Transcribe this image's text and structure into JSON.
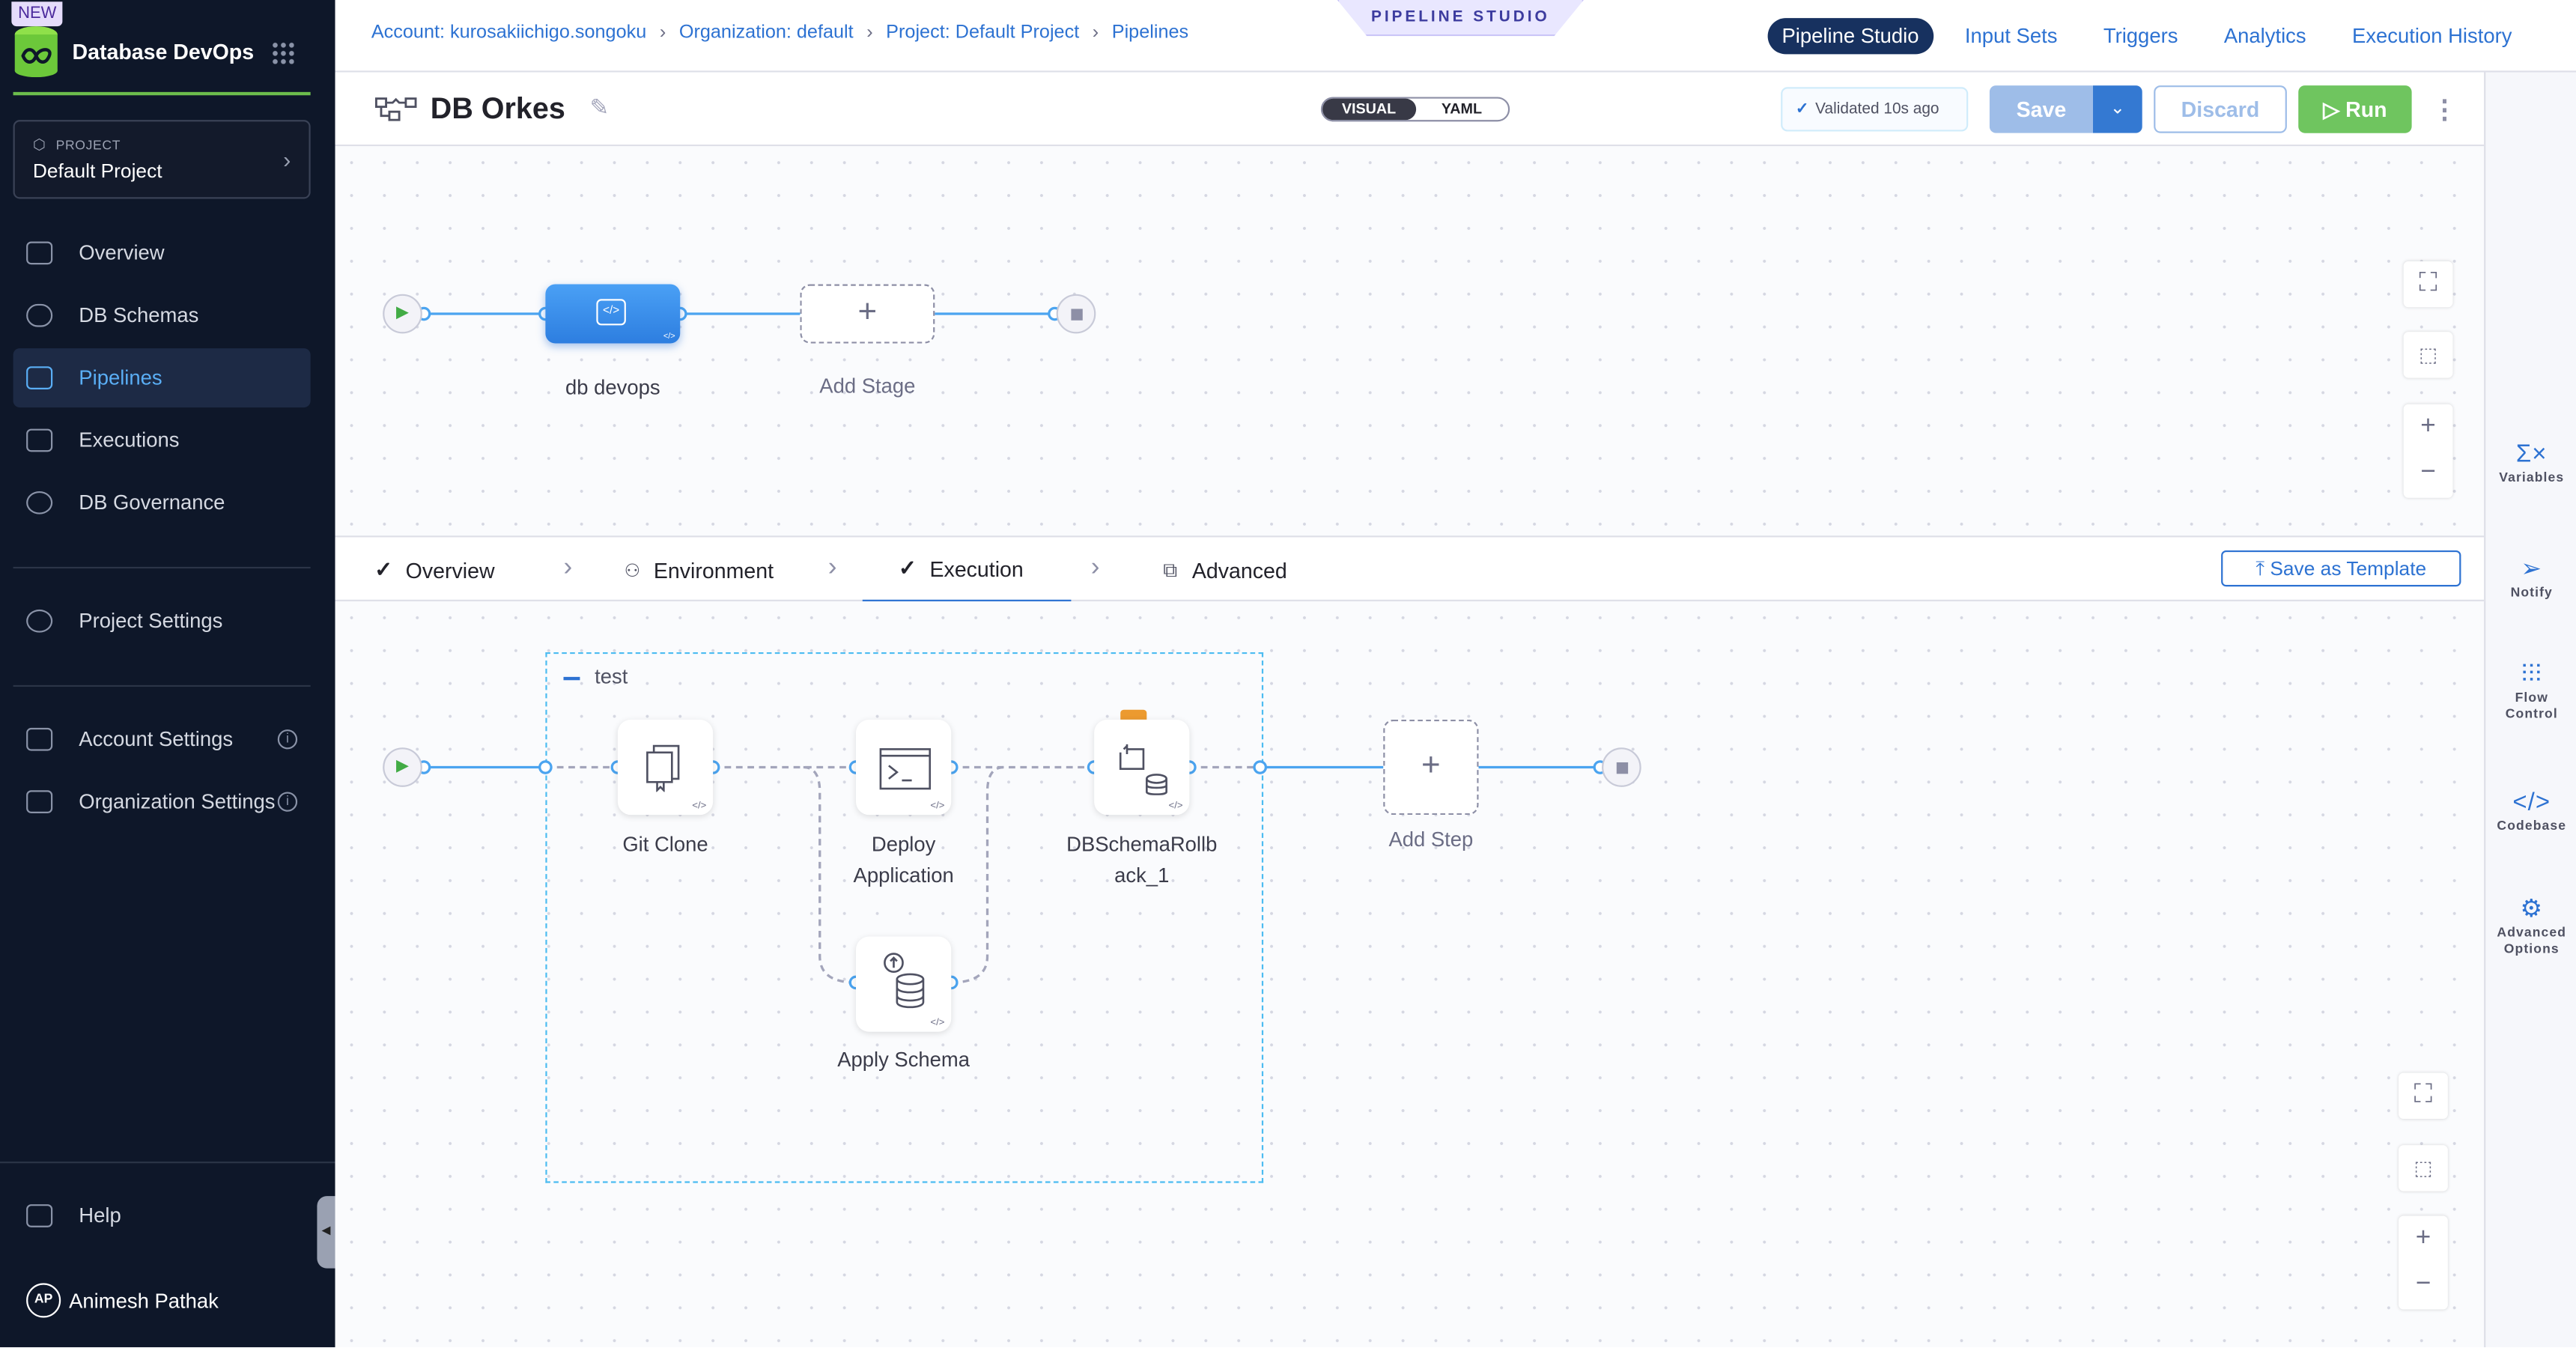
{
  "sidebar": {
    "badge": "NEW",
    "module": "Database DevOps",
    "project_label": "PROJECT",
    "project_name": "Default Project",
    "items": [
      {
        "label": "Overview",
        "icon": "home-icon"
      },
      {
        "label": "DB Schemas",
        "icon": "database-icon"
      },
      {
        "label": "Pipelines",
        "icon": "pipeline-icon",
        "active": true
      },
      {
        "label": "Executions",
        "icon": "executions-icon"
      },
      {
        "label": "DB Governance",
        "icon": "governance-icon"
      }
    ],
    "project_settings": "Project Settings",
    "account_settings": "Account Settings",
    "org_settings": "Organization Settings",
    "help": "Help",
    "user_initials": "AP",
    "user_name": "Animesh Pathak"
  },
  "breadcrumbs": [
    "Account: kurosakiichigo.songoku",
    "Organization: default",
    "Project: Default Project",
    "Pipelines"
  ],
  "studio_tag": "PIPELINE STUDIO",
  "top_tabs": [
    "Pipeline Studio",
    "Input Sets",
    "Triggers",
    "Analytics",
    "Execution History"
  ],
  "pipeline": {
    "name": "DB Orkes",
    "view_visual": "VISUAL",
    "view_yaml": "YAML",
    "validated": "Validated",
    "validated_time": "10s ago",
    "save": "Save",
    "discard": "Discard",
    "run": "Run"
  },
  "stages": {
    "stage_name": "db devops",
    "add_stage": "Add Stage"
  },
  "stage_tabs": {
    "overview": "Overview",
    "environment": "Environment",
    "execution": "Execution",
    "advanced": "Advanced",
    "save_template": "Save as Template"
  },
  "execution": {
    "group": "test",
    "steps": [
      "Git Clone",
      "Deploy Application",
      "DBSchemaRollback_1",
      "Apply Schema"
    ],
    "step_label_lines": {
      "deploy": [
        "Deploy",
        "Application"
      ],
      "rollback": [
        "DBSchemaRollb",
        "ack_1"
      ]
    },
    "add_step": "Add Step"
  },
  "right_panel": [
    {
      "label": "Variables",
      "icon": "variables-icon"
    },
    {
      "label": "Notify",
      "icon": "notify-icon"
    },
    {
      "label": "Flow Control",
      "icon": "flow-control-icon"
    },
    {
      "label": "Codebase",
      "icon": "codebase-icon"
    },
    {
      "label": "Advanced Options",
      "icon": "advanced-options-icon"
    }
  ],
  "colors": {
    "accent": "#2d72d2",
    "sidebar": "#0e1729",
    "run": "#6fc55f",
    "stage": "#3b8ff0",
    "group_border": "#4cbcf1"
  }
}
